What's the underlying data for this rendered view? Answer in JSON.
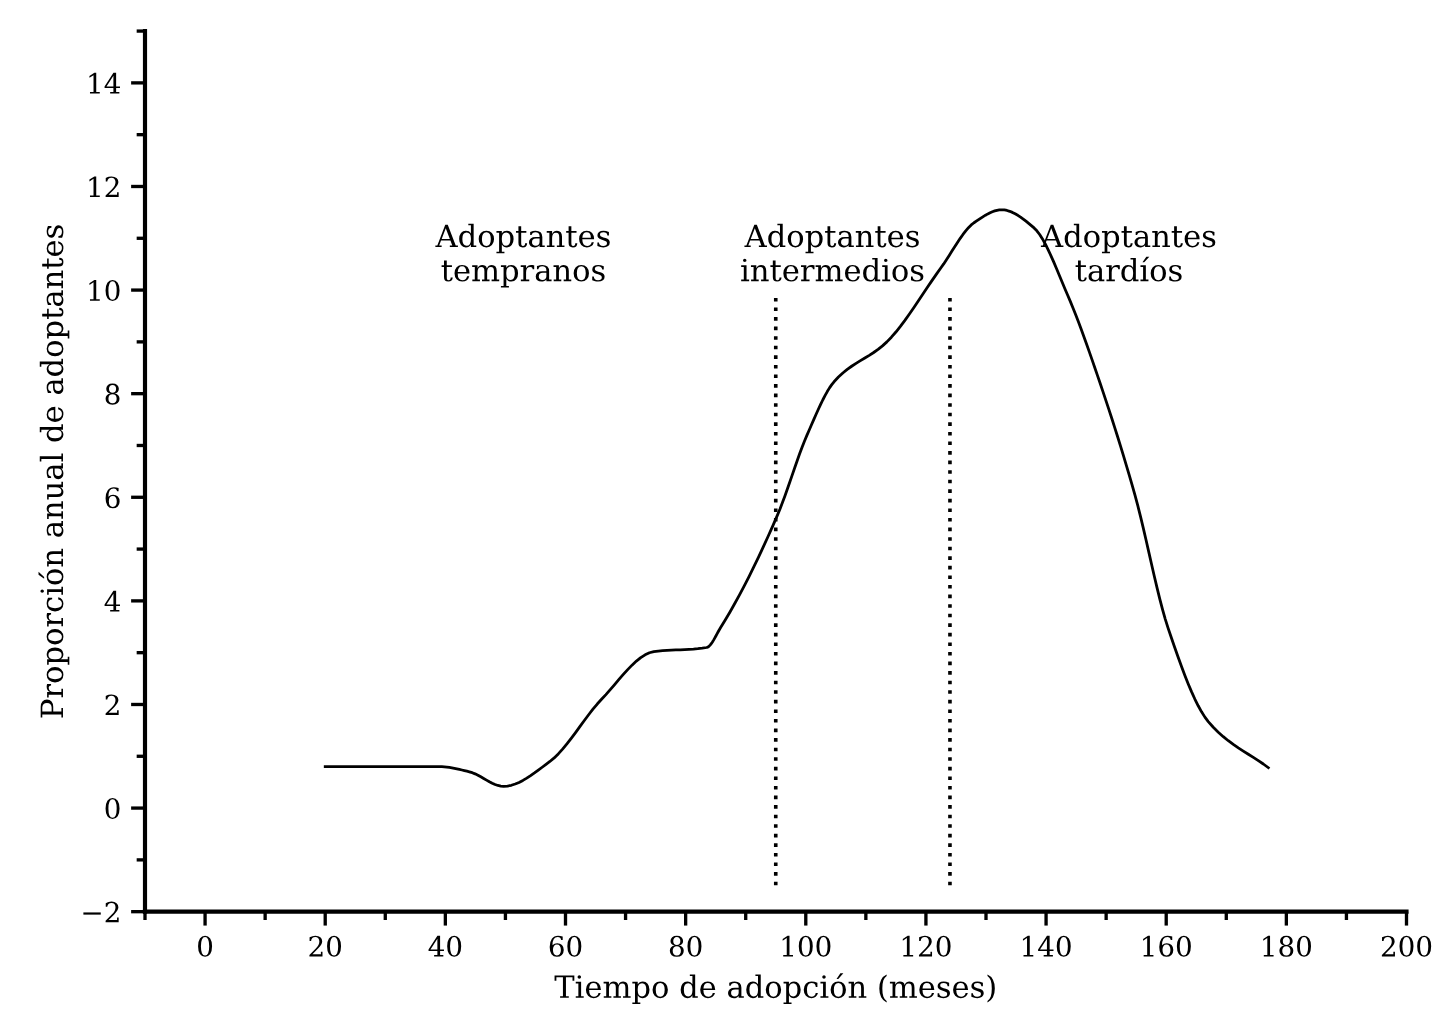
{
  "chart_data": {
    "type": "line",
    "xlabel": "Tiempo de adopción (meses)",
    "ylabel": "Proporción anual de adoptantes",
    "x": [
      20,
      39,
      44,
      49.7,
      57.4,
      66,
      74.7,
      83.5,
      85.8,
      95.3,
      100.2,
      104.7,
      113.5,
      122.5,
      128,
      132.6,
      138,
      143.6,
      149,
      154.8,
      160.3,
      167,
      177
    ],
    "series": [
      {
        "color": "#000000",
        "values": [
          0.8,
          0.8,
          0.7,
          0.42,
          0.9,
          2.1,
          3.02,
          3.1,
          3.48,
          5.66,
          7.2,
          8.23,
          9.0,
          10.43,
          11.3,
          11.55,
          11.2,
          9.9,
          8.2,
          6.04,
          3.48,
          1.67,
          0.78
        ]
      }
    ],
    "ref_lines": [
      {
        "axis": "x",
        "value": 95,
        "color": "#000000",
        "line_style": "dotted"
      },
      {
        "axis": "x",
        "value": 124,
        "color": "#000000",
        "line_style": "dotted"
      }
    ],
    "annotations": [
      "Adoptantes\ntempranos",
      "Adoptantes\nintermedios",
      "Adoptantes\ntardíos"
    ],
    "xlim": [
      -10,
      200
    ],
    "xticks": [
      {
        "value": -10,
        "label": null
      },
      0,
      {
        "value": 10,
        "label": null
      },
      20,
      {
        "value": 30,
        "label": null
      },
      40,
      {
        "value": 50,
        "label": null
      },
      60,
      {
        "value": 70,
        "label": null
      },
      80,
      {
        "value": 90,
        "label": null
      },
      100,
      {
        "value": 110,
        "label": null
      },
      120,
      {
        "value": 130,
        "label": null
      },
      140,
      {
        "value": 150,
        "label": null
      },
      160,
      {
        "value": 170,
        "label": null
      },
      180,
      {
        "value": 190,
        "label": null
      },
      200
    ],
    "ylim": [
      -2,
      15
    ],
    "yticks": [
      {
        "value": -2,
        "label": "−2"
      },
      {
        "value": -1,
        "label": null
      },
      0,
      {
        "value": 1,
        "label": null
      },
      2,
      {
        "value": 3,
        "label": null
      },
      4,
      {
        "value": 5,
        "label": null
      },
      6,
      {
        "value": 7,
        "label": null
      },
      8,
      {
        "value": 9,
        "label": null
      },
      10,
      {
        "value": 11,
        "label": null
      },
      12,
      {
        "value": 13,
        "label": null
      },
      14,
      {
        "value": 15,
        "label": null
      }
    ],
    "grid": false,
    "legend": false,
    "marker": "none",
    "line_style": "solid"
  }
}
